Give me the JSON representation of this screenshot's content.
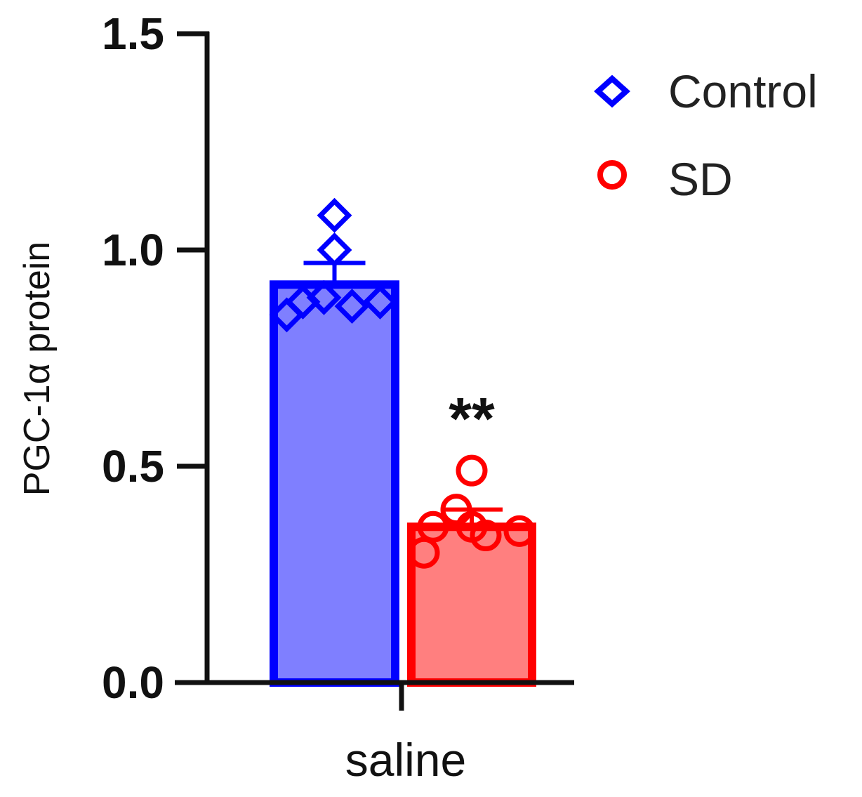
{
  "chart_data": {
    "type": "bar",
    "title": "",
    "xlabel": "",
    "ylabel": "PGC-1α protein",
    "ylim": [
      0,
      1.5
    ],
    "yticks": [
      "0.0",
      "0.5",
      "1.0",
      "1.5"
    ],
    "yticks_values": [
      0,
      0.5,
      1.0,
      1.5
    ],
    "categories": [
      "saline"
    ],
    "grid": false,
    "legend_position": "top-right",
    "series": [
      {
        "name": "Control",
        "color": "#0000ff",
        "fill": "#7f7fff",
        "marker": "diamond",
        "mean": 0.92,
        "error": 0.05,
        "points": [
          0.85,
          0.88,
          0.89,
          0.87,
          0.88,
          1.0,
          1.08
        ]
      },
      {
        "name": "SD",
        "color": "#ff0000",
        "fill": "#ff7f7f",
        "marker": "circle",
        "mean": 0.36,
        "error": 0.04,
        "points": [
          0.3,
          0.36,
          0.4,
          0.34,
          0.35,
          0.36,
          0.49
        ],
        "annotation": "**"
      }
    ]
  }
}
